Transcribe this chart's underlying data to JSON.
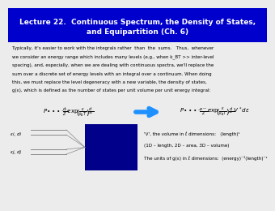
{
  "title_line1": "Lecture 22.  Continuous Spectrum, the Density of States,",
  "title_line2": "and Equipartition (Ch. 6)",
  "title_bg_color": "#0000CC",
  "title_text_color": "#FFFFFF",
  "bg_color": "#ECECEC",
  "blue_box_color": "#00008B",
  "body_lines": [
    "Typically, it's easier to work with the integrals rather  than  the  sums.   Thus,  whenever",
    "we consider an energy range which includes many levels (e.g., when k_BT >> inter-level",
    "spacing), and, especially, when we are dealing with continuous spectra, we'll replace the",
    "sum over a discrete set of energy levels with an integral over a continuum. When doing",
    "this, we must replace the level degeneracy with a new variable, the density of states,",
    "g(ε), which is defined as the number of states per unit volume per unit energy integral:"
  ],
  "note_line1": "'V', the volume in ℓ dimensions:   (length)ᵌ",
  "note_line2": "(1D – length, 2D – area, 3D – volume)",
  "note_line3": "The units of g(ε) in ℓ dimensions:  (energy)⁻¹(length)⁻ᵌ",
  "arrow_color": "#1E90FF",
  "level_label_top": "εi, di",
  "level_label_bot": "εj, dj"
}
